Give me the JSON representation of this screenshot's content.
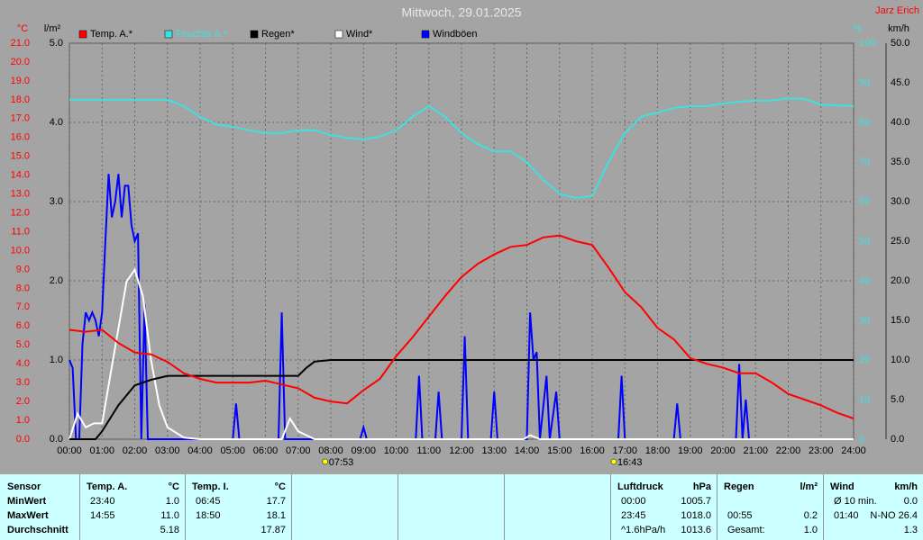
{
  "chart_data": {
    "type": "line",
    "title": "Mittwoch, 29.01.2025",
    "author": "Jarz Erich",
    "y_label": "°C",
    "y2_label": "l/m²",
    "y3_label": "%",
    "y4_label": "km/h",
    "grid": true,
    "xlim": [
      0,
      24
    ],
    "xticks": [
      {
        "value": 0,
        "label": "00:00"
      },
      {
        "value": 1,
        "label": "01:00"
      },
      {
        "value": 2,
        "label": "02:00"
      },
      {
        "value": 3,
        "label": "03:00"
      },
      {
        "value": 4,
        "label": "04:00"
      },
      {
        "value": 5,
        "label": "05:00"
      },
      {
        "value": 6,
        "label": "06:00"
      },
      {
        "value": 7,
        "label": "07:00"
      },
      {
        "value": 8,
        "label": "08:00"
      },
      {
        "value": 9,
        "label": "09:00"
      },
      {
        "value": 10,
        "label": "10:00"
      },
      {
        "value": 11,
        "label": "11:00"
      },
      {
        "value": 12,
        "label": "12:00"
      },
      {
        "value": 13,
        "label": "13:00"
      },
      {
        "value": 14,
        "label": "14:00"
      },
      {
        "value": 15,
        "label": "15:00"
      },
      {
        "value": 16,
        "label": "16:00"
      },
      {
        "value": 17,
        "label": "17:00"
      },
      {
        "value": 18,
        "label": "18:00"
      },
      {
        "value": 19,
        "label": "19:00"
      },
      {
        "value": 20,
        "label": "20:00"
      },
      {
        "value": 21,
        "label": "21:00"
      },
      {
        "value": 22,
        "label": "22:00"
      },
      {
        "value": 23,
        "label": "23:00"
      },
      {
        "value": 24,
        "label": "24:00"
      }
    ],
    "ylim": [
      0,
      21
    ],
    "yticks": [
      {
        "value": 0,
        "label": "0.0"
      },
      {
        "value": 1,
        "label": "1.0"
      },
      {
        "value": 2,
        "label": "2.0"
      },
      {
        "value": 3,
        "label": "3.0"
      },
      {
        "value": 4,
        "label": "4.0"
      },
      {
        "value": 5,
        "label": "5.0"
      },
      {
        "value": 6,
        "label": "6.0"
      },
      {
        "value": 7,
        "label": "7.0"
      },
      {
        "value": 8,
        "label": "8.0"
      },
      {
        "value": 9,
        "label": "9.0"
      },
      {
        "value": 10,
        "label": "10.0"
      },
      {
        "value": 11,
        "label": "11.0"
      },
      {
        "value": 12,
        "label": "12.0"
      },
      {
        "value": 13,
        "label": "13.0"
      },
      {
        "value": 14,
        "label": "14.0"
      },
      {
        "value": 15,
        "label": "15.0"
      },
      {
        "value": 16,
        "label": "16.0"
      },
      {
        "value": 17,
        "label": "17.0"
      },
      {
        "value": 18,
        "label": "18.0"
      },
      {
        "value": 19,
        "label": "19.0"
      },
      {
        "value": 20,
        "label": "20.0"
      },
      {
        "value": 21,
        "label": "21.0"
      }
    ],
    "y2lim": [
      0,
      5
    ],
    "y2ticks": [
      {
        "value": 0,
        "label": "0.0"
      },
      {
        "value": 1,
        "label": "1.0"
      },
      {
        "value": 2,
        "label": "2.0"
      },
      {
        "value": 3,
        "label": "3.0"
      },
      {
        "value": 4,
        "label": "4.0"
      },
      {
        "value": 5,
        "label": "5.0"
      }
    ],
    "y3lim": [
      0,
      100
    ],
    "y3ticks": [
      0,
      10,
      20,
      30,
      40,
      50,
      60,
      70,
      80,
      90,
      100
    ],
    "y4lim": [
      0,
      50
    ],
    "y4ticks": [
      {
        "value": 0,
        "label": "0.0"
      },
      {
        "value": 5,
        "label": "5.0"
      },
      {
        "value": 10,
        "label": "10.0"
      },
      {
        "value": 15,
        "label": "15.0"
      },
      {
        "value": 20,
        "label": "20.0"
      },
      {
        "value": 25,
        "label": "25.0"
      },
      {
        "value": 30,
        "label": "30.0"
      },
      {
        "value": 35,
        "label": "35.0"
      },
      {
        "value": 40,
        "label": "40.0"
      },
      {
        "value": 45,
        "label": "45.0"
      },
      {
        "value": 50,
        "label": "50.0"
      }
    ],
    "sun_events": [
      {
        "x": 7.883,
        "label": "07:53"
      },
      {
        "x": 16.717,
        "label": "16:43"
      }
    ],
    "series": [
      {
        "name": "Temp. A.*",
        "color": "#ff0000",
        "axis": "y",
        "x": [
          0,
          0.5,
          1,
          1.5,
          2,
          2.5,
          3,
          3.5,
          4,
          4.5,
          5,
          5.5,
          6,
          6.5,
          7,
          7.5,
          8,
          8.5,
          9,
          9.5,
          10,
          10.5,
          11,
          11.5,
          12,
          12.5,
          13,
          13.5,
          14,
          14.5,
          15,
          15.5,
          16,
          16.5,
          17,
          17.5,
          18,
          18.5,
          19,
          19.5,
          20,
          20.5,
          21,
          21.5,
          22,
          22.5,
          23,
          23.5,
          24
        ],
        "values": [
          5.8,
          5.7,
          5.8,
          5.1,
          4.6,
          4.5,
          4.1,
          3.5,
          3.2,
          3.0,
          3.0,
          3.0,
          3.1,
          2.9,
          2.7,
          2.2,
          2.0,
          1.9,
          2.6,
          3.2,
          4.4,
          5.4,
          6.5,
          7.6,
          8.6,
          9.3,
          9.8,
          10.2,
          10.3,
          10.7,
          10.8,
          10.5,
          10.3,
          9.1,
          7.8,
          7.0,
          5.9,
          5.3,
          4.3,
          4.0,
          3.8,
          3.5,
          3.5,
          3.0,
          2.4,
          2.1,
          1.8,
          1.4,
          1.1
        ]
      },
      {
        "name": "Feuchte A.*",
        "color": "#40e0e0",
        "axis": "y3",
        "x": [
          0,
          0.5,
          1,
          1.5,
          2,
          2.5,
          3,
          3.5,
          4,
          4.5,
          5,
          5.5,
          6,
          6.5,
          7,
          7.5,
          8,
          8.5,
          9,
          9.5,
          10,
          10.5,
          11,
          11.5,
          12,
          12.5,
          13,
          13.5,
          14,
          14.5,
          15,
          15.5,
          16,
          16.5,
          17,
          17.5,
          18,
          18.5,
          19,
          19.5,
          20,
          20.5,
          21,
          21.5,
          22,
          22.5,
          23,
          23.5,
          24
        ],
        "values": [
          85.7,
          85.7,
          85.7,
          85.7,
          85.7,
          85.7,
          85.7,
          84.1,
          81.4,
          79.5,
          78.9,
          78.0,
          77.3,
          77.3,
          78.0,
          78.0,
          76.8,
          76.1,
          75.7,
          76.4,
          78.0,
          81.4,
          84.1,
          81.4,
          77.3,
          74.5,
          72.7,
          72.7,
          70.0,
          65.5,
          62.0,
          60.9,
          61.4,
          70.0,
          77.3,
          81.4,
          82.5,
          83.6,
          84.1,
          84.1,
          84.8,
          85.2,
          85.5,
          85.5,
          86.1,
          85.9,
          84.5,
          84.3,
          84.1
        ]
      },
      {
        "name": "Regen*",
        "color": "#000000",
        "axis": "y2",
        "x": [
          0,
          0.8,
          1,
          1.5,
          2,
          2.5,
          3,
          4,
          5,
          6,
          7,
          7.25,
          7.5,
          8,
          12,
          16,
          20,
          24
        ],
        "values": [
          0,
          0,
          0.1,
          0.43,
          0.68,
          0.75,
          0.8,
          0.8,
          0.8,
          0.8,
          0.8,
          0.9,
          0.98,
          1.0,
          1.0,
          1.0,
          1.0,
          1.0
        ]
      },
      {
        "name": "Wind*",
        "color": "#ffffff",
        "axis": "y4",
        "x": [
          0,
          0.25,
          0.5,
          0.75,
          1,
          1.25,
          1.5,
          1.75,
          2,
          2.25,
          2.5,
          2.75,
          3,
          3.5,
          4,
          6.5,
          6.75,
          7,
          7.5,
          13.9,
          14.1,
          14.4,
          24
        ],
        "values": [
          0,
          3.2,
          1.5,
          2,
          2,
          8,
          14,
          19.9,
          21.4,
          18,
          10,
          4.3,
          1.5,
          0.2,
          0,
          0,
          2.6,
          1,
          0,
          0,
          0.5,
          0,
          0
        ]
      },
      {
        "name": "Windböen",
        "color": "#0000ff",
        "axis": "y4",
        "x": [
          0,
          0.1,
          0.2,
          0.3,
          0.4,
          0.5,
          0.6,
          0.7,
          0.8,
          0.9,
          1.0,
          1.1,
          1.2,
          1.3,
          1.4,
          1.5,
          1.6,
          1.7,
          1.8,
          1.9,
          2.0,
          2.1,
          2.2,
          2.3,
          2.4,
          5.0,
          5.1,
          5.2,
          6.4,
          6.5,
          6.6,
          8.9,
          9.0,
          9.1,
          10.6,
          10.7,
          10.8,
          11.2,
          11.3,
          11.4,
          12.0,
          12.1,
          12.2,
          12.9,
          13.0,
          13.1,
          14.0,
          14.1,
          14.2,
          14.3,
          14.4,
          14.6,
          14.7,
          14.9,
          15.0,
          16.8,
          16.9,
          17.0,
          18.5,
          18.6,
          18.7,
          20.4,
          20.5,
          20.6,
          20.7,
          20.8,
          24
        ],
        "values": [
          10,
          9,
          0,
          0,
          12,
          16,
          15,
          16,
          15,
          13,
          16,
          25,
          33.5,
          28,
          30,
          33.5,
          28,
          32,
          32,
          27,
          25,
          26,
          0,
          17,
          0,
          0,
          4.5,
          0,
          0,
          16,
          0,
          0,
          1.5,
          0,
          0,
          8,
          0,
          0,
          6,
          0,
          0,
          13,
          0,
          0,
          6,
          0,
          0,
          16,
          10,
          11,
          0,
          8,
          0,
          6,
          0,
          0,
          8,
          0,
          0,
          4.5,
          0,
          0,
          9.5,
          0,
          5,
          0,
          0
        ]
      }
    ]
  },
  "stats": {
    "labels": [
      "Sensor",
      "MinWert",
      "MaxWert",
      "Durchschnitt"
    ],
    "sections": [
      {
        "title": "Temp. A.",
        "unit": "°C",
        "rows": [
          [
            "23:40",
            "1.0"
          ],
          [
            "14:55",
            "11.0"
          ],
          [
            null,
            "5.18"
          ]
        ]
      },
      {
        "title": "Temp. I.",
        "unit": "°C",
        "rows": [
          [
            "06:45",
            "17.7"
          ],
          [
            "18:50",
            "18.1"
          ],
          [
            null,
            "17.87"
          ]
        ]
      },
      {
        "title": "Luftdruck",
        "unit": "hPa",
        "rows": [
          [
            "00:00",
            "1005.7"
          ],
          [
            "23:45",
            "1018.0"
          ],
          [
            "^1.6hPa/h",
            "1013.6"
          ]
        ]
      },
      {
        "title": "Regen",
        "unit": "l/m²",
        "rows": [
          [
            null,
            null
          ],
          [
            "00:55",
            "0.2"
          ],
          [
            "Gesamt:",
            "1.0"
          ]
        ]
      },
      {
        "title": "Wind",
        "unit": "km/h",
        "rows": [
          [
            "Ø 10 min.",
            "0.0"
          ],
          [
            "01:40",
            "N-NO 26.4"
          ],
          [
            null,
            "1.3"
          ]
        ]
      }
    ]
  }
}
